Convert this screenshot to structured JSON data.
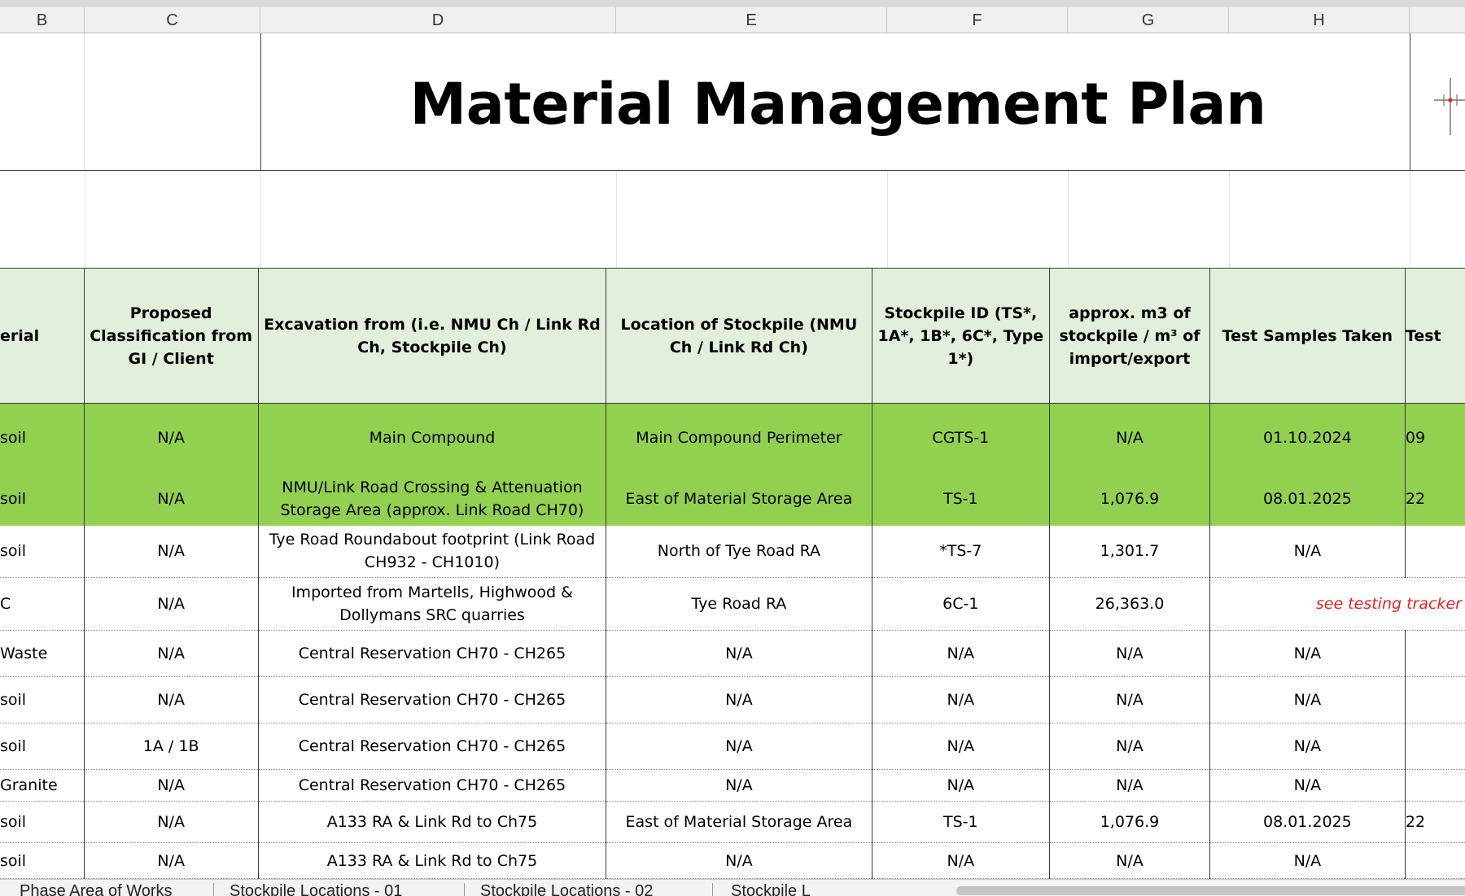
{
  "column_headers": [
    "B",
    "C",
    "D",
    "E",
    "F",
    "G",
    "H",
    ""
  ],
  "title": "Material Management Plan",
  "table": {
    "headers": [
      "erial",
      "Proposed Classification from GI / Client",
      "Excavation from (i.e. NMU Ch / Link Rd Ch, Stockpile Ch)",
      "Location of Stockpile (NMU Ch / Link Rd Ch)",
      "Stockpile ID (TS*, 1A*, 1B*, 6C*, Type 1*)",
      "approx. m3 of stockpile / m³ of import/export",
      "Test Samples Taken",
      "Test"
    ],
    "rows": [
      {
        "b": "soil",
        "c": "N/A",
        "d": "Main Compound",
        "e": "Main Compound Perimeter",
        "f": "CGTS-1",
        "g": "N/A",
        "h": "01.10.2024",
        "i": "09"
      },
      {
        "b": "soil",
        "c": "N/A",
        "d": "NMU/Link Road Crossing & Attenuation Storage Area (approx. Link Road CH70)",
        "e": "East of Material Storage Area",
        "f": "TS-1",
        "g": "1,076.9",
        "h": "08.01.2025",
        "i": "22"
      },
      {
        "b": "soil",
        "c": "N/A",
        "d": "Tye Road Roundabout footprint (Link Road CH932 - CH1010)",
        "e": "North of Tye Road RA",
        "f": "*TS-7",
        "g": "1,301.7",
        "h": "N/A",
        "i": ""
      },
      {
        "b": "C",
        "c": "N/A",
        "d": "Imported from Martells, Highwood & Dollymans SRC quarries",
        "e": "Tye Road RA",
        "f": "6C-1",
        "g": "26,363.0",
        "h": "see testing tracker",
        "i": ""
      },
      {
        "b": "Waste",
        "c": "N/A",
        "d": "Central Reservation CH70 - CH265",
        "e": "N/A",
        "f": "N/A",
        "g": "N/A",
        "h": "N/A",
        "i": ""
      },
      {
        "b": "soil",
        "c": "N/A",
        "d": "Central Reservation CH70 - CH265",
        "e": "N/A",
        "f": "N/A",
        "g": "N/A",
        "h": "N/A",
        "i": ""
      },
      {
        "b": "soil",
        "c": "1A / 1B",
        "d": "Central Reservation CH70 - CH265",
        "e": "N/A",
        "f": "N/A",
        "g": "N/A",
        "h": "N/A",
        "i": ""
      },
      {
        "b": "Granite",
        "c": "N/A",
        "d": "Central Reservation CH70 - CH265",
        "e": "N/A",
        "f": "N/A",
        "g": "N/A",
        "h": "N/A",
        "i": ""
      },
      {
        "b": "soil",
        "c": "N/A",
        "d": "A133 RA & Link Rd to Ch75",
        "e": "East of Material Storage Area",
        "f": "TS-1",
        "g": "1,076.9",
        "h": "08.01.2025",
        "i": "22"
      },
      {
        "b": "soil",
        "c": "N/A",
        "d": "A133 RA & Link Rd to Ch75",
        "e": "N/A",
        "f": "N/A",
        "g": "N/A",
        "h": "N/A",
        "i": ""
      }
    ]
  },
  "sheet_tabs": [
    "Phase Area of Works",
    "Stockpile Locations - 01",
    "Stockpile Locations - 02",
    "Stockpile L"
  ],
  "colors": {
    "header_fill": "#e2efda",
    "highlight_fill": "#92d050",
    "note_red": "#e0251e"
  }
}
